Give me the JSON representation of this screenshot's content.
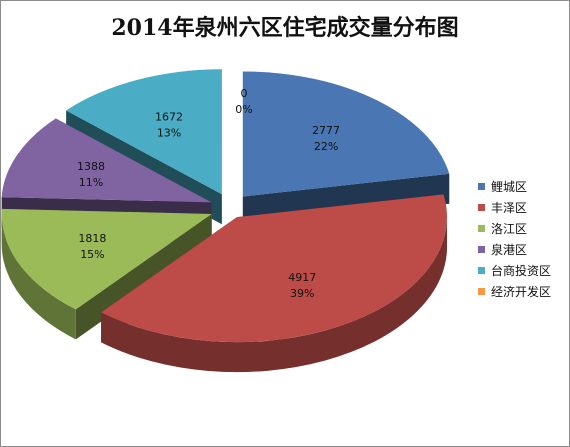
{
  "chart_data": {
    "type": "pie",
    "title": "2014年泉州六区住宅成交量分布图",
    "categories": [
      "鲤城区",
      "丰泽区",
      "洛江区",
      "泉港区",
      "台商投资区",
      "经济开发区"
    ],
    "values": [
      2777,
      4917,
      1818,
      1388,
      1672,
      0
    ],
    "percent_labels": [
      "22%",
      "39%",
      "15%",
      "11%",
      "13%",
      "0%"
    ],
    "colors": [
      "#4a77b3",
      "#bd4b48",
      "#9bbb59",
      "#8064a2",
      "#4aacc5",
      "#f79646"
    ],
    "legend_position": "right",
    "exploded": true,
    "style": "3d"
  }
}
